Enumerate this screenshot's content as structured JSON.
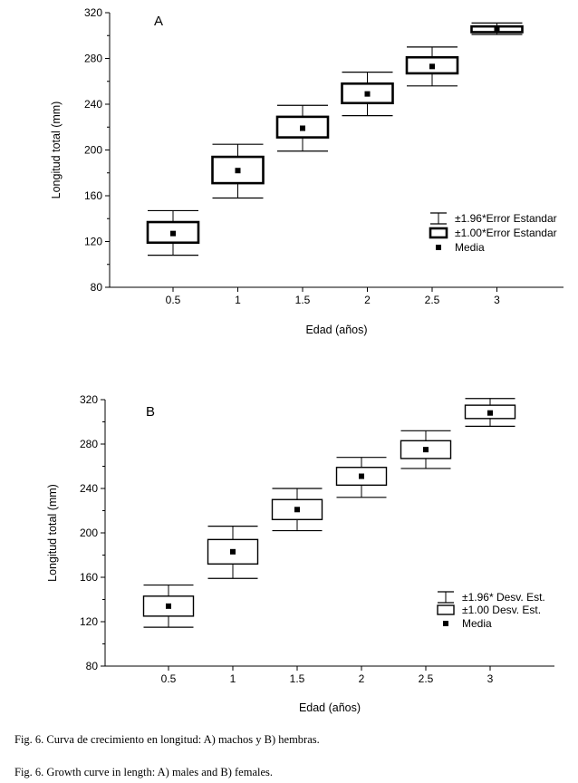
{
  "chart_data": [
    {
      "type": "box",
      "panel_label": "A",
      "xlabel": "Edad (años)",
      "ylabel": "Longitud total (mm)",
      "categories": [
        "0.5",
        "1",
        "1.5",
        "2",
        "2.5",
        "3"
      ],
      "yticks": [
        "80",
        "120",
        "160",
        "200",
        "240",
        "280",
        "320"
      ],
      "ylim": [
        80,
        320
      ],
      "mean": [
        127,
        182,
        219,
        249,
        273,
        306
      ],
      "box_low": [
        119,
        171,
        211,
        241,
        267,
        303
      ],
      "box_high": [
        137,
        194,
        229,
        258,
        281,
        308
      ],
      "whisker_low": [
        108,
        158,
        199,
        230,
        256,
        301
      ],
      "whisker_high": [
        147,
        205,
        239,
        268,
        290,
        311
      ],
      "legend": {
        "whisker": "±1.96*Error Estandar",
        "box": "±1.00*Error Estandar",
        "mean": "Media",
        "position": "right"
      }
    },
    {
      "type": "box",
      "panel_label": "B",
      "xlabel": "Edad (años)",
      "ylabel": "Longitud total (mm)",
      "categories": [
        "0.5",
        "1",
        "1.5",
        "2",
        "2.5",
        "3"
      ],
      "yticks": [
        "80",
        "120",
        "160",
        "200",
        "240",
        "280",
        "320"
      ],
      "ylim": [
        80,
        320
      ],
      "mean": [
        134,
        183,
        221,
        251,
        275,
        308
      ],
      "box_low": [
        125,
        172,
        212,
        243,
        267,
        303
      ],
      "box_high": [
        143,
        194,
        230,
        259,
        283,
        315
      ],
      "whisker_low": [
        115,
        159,
        202,
        232,
        258,
        296
      ],
      "whisker_high": [
        153,
        206,
        240,
        268,
        292,
        321
      ],
      "legend": {
        "whisker": "±1.96* Desv. Est.",
        "box": "±1.00 Desv. Est.",
        "mean": "Media",
        "position": "right"
      }
    }
  ],
  "captions": [
    "Fig. 6. Curva de crecimiento en longitud: A) machos y B) hembras.",
    "Fig. 6. Growth curve in length: A) males and B) females."
  ]
}
